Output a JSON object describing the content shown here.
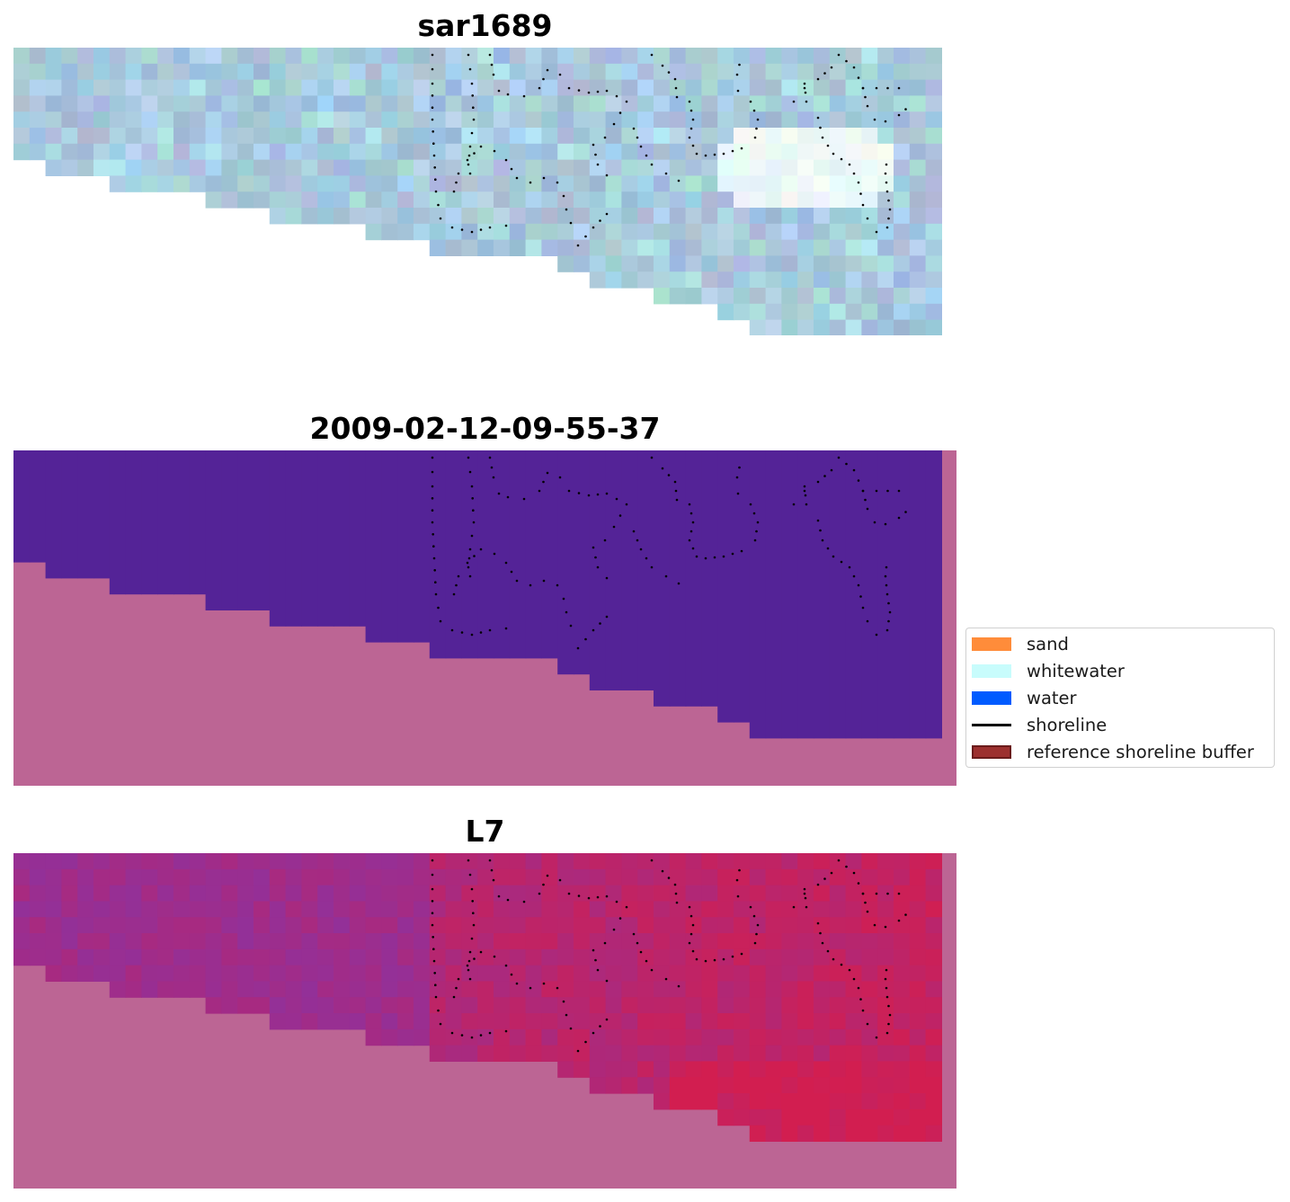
{
  "panels": [
    {
      "id": "rgb",
      "title": "sar1689"
    },
    {
      "id": "classified",
      "title": "2009-02-12-09-55-37"
    },
    {
      "id": "index",
      "title": "L7"
    }
  ],
  "legend": {
    "items": [
      {
        "label": "sand",
        "color": "#ff8c3a",
        "kind": "patch"
      },
      {
        "label": "whitewater",
        "color": "#c8fcfc",
        "kind": "patch"
      },
      {
        "label": "water",
        "color": "#005bff",
        "kind": "patch"
      },
      {
        "label": "shoreline",
        "color": "#000000",
        "kind": "line"
      },
      {
        "label": "reference shoreline buffer",
        "color": "#9c302f",
        "kind": "patch-edge"
      }
    ]
  },
  "colors": {
    "no_data": "#bc6594",
    "water_class": "#542397",
    "index_low": "#4a00b4",
    "index_high": "#cc0033",
    "rgb_base": "#a8bcd8"
  }
}
